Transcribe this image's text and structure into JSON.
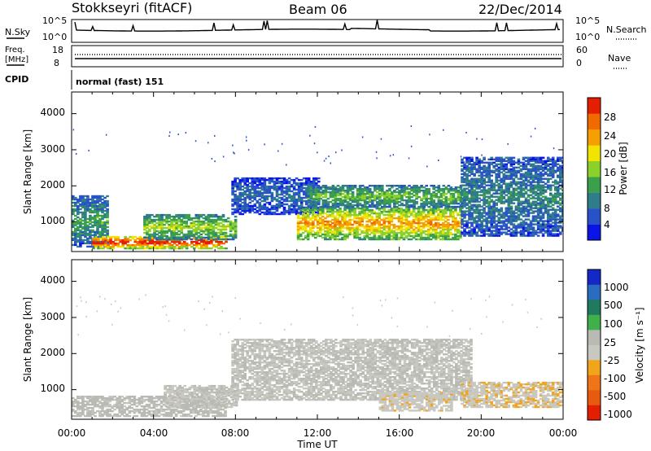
{
  "header": {
    "station": "Stokkseyri (fitACF)",
    "beam": "Beam 06",
    "date": "22/Dec/2014"
  },
  "noise_panel": {
    "left_label": "N.Sky",
    "right_label": "N.Search",
    "left_ticks": [
      "10^5",
      "10^0"
    ],
    "right_ticks": [
      "10^5",
      "10^0"
    ]
  },
  "freq_panel": {
    "left_label_line1": "Freq.",
    "left_label_line2": "[MHz]",
    "left_ticks": [
      "18",
      "8"
    ],
    "right_label": "Nave",
    "right_ticks": [
      "60",
      "0"
    ]
  },
  "cpid": {
    "label": "CPID",
    "mode": "normal (fast) 151"
  },
  "colors": {
    "power_scale": [
      "#0a14e6",
      "#2a52c8",
      "#2f7d8a",
      "#3aa04b",
      "#8cd02a",
      "#f0e400",
      "#f5a000",
      "#f06a00",
      "#e41e00"
    ],
    "velocity_scale": [
      "#1428c8",
      "#2a6cc0",
      "#1f7a5e",
      "#3fb04a",
      "#b9bab3",
      "#c8c8c0",
      "#f2a41a",
      "#f07418",
      "#e85a10",
      "#e41e00"
    ]
  },
  "chart_data": [
    {
      "type": "heatmap",
      "name": "power",
      "xlabel": "",
      "ylabel": "Slant Range [km]",
      "x_ticks": [
        "00:00",
        "04:00",
        "08:00",
        "12:00",
        "16:00",
        "20:00",
        "00:00"
      ],
      "x_range_hours": [
        0,
        24
      ],
      "y_ticks": [
        "1000",
        "2000",
        "3000",
        "4000"
      ],
      "ylim": [
        180,
        4600
      ],
      "colorbar": {
        "label": "Power [dB]",
        "ticks": [
          "4",
          "8",
          "12",
          "16",
          "20",
          "24",
          "28"
        ],
        "range": [
          0,
          30
        ]
      },
      "regions": [
        {
          "t_start": 0.0,
          "t_end": 1.8,
          "r_low": 300,
          "r_high": 1700,
          "mean": 10
        },
        {
          "t_start": 1.0,
          "t_end": 7.5,
          "r_low": 250,
          "r_high": 600,
          "mean": 26
        },
        {
          "t_start": 3.5,
          "t_end": 8.0,
          "r_low": 500,
          "r_high": 1200,
          "mean": 14
        },
        {
          "t_start": 7.8,
          "t_end": 12.0,
          "r_low": 1200,
          "r_high": 2200,
          "mean": 6
        },
        {
          "t_start": 11.0,
          "t_end": 19.0,
          "r_low": 500,
          "r_high": 1400,
          "mean": 20
        },
        {
          "t_start": 11.5,
          "t_end": 19.0,
          "r_low": 1400,
          "r_high": 2000,
          "mean": 12
        },
        {
          "t_start": 19.0,
          "t_end": 24.0,
          "r_low": 600,
          "r_high": 2800,
          "mean": 8
        }
      ]
    },
    {
      "type": "heatmap",
      "name": "velocity",
      "xlabel": "Time UT",
      "ylabel": "Slant Range [km]",
      "x_ticks": [
        "00:00",
        "04:00",
        "08:00",
        "12:00",
        "16:00",
        "20:00",
        "00:00"
      ],
      "x_range_hours": [
        0,
        24
      ],
      "y_ticks": [
        "1000",
        "2000",
        "3000",
        "4000"
      ],
      "ylim": [
        180,
        4600
      ],
      "colorbar": {
        "label": "Velocity [m s⁻¹]",
        "ticks": [
          "1000",
          "500",
          "100",
          "25",
          "-25",
          "-100",
          "-500",
          "-1000"
        ],
        "range": [
          -1500,
          1500
        ]
      },
      "regions": [
        {
          "t_start": 0.0,
          "t_end": 7.5,
          "r_low": 250,
          "r_high": 800,
          "mean": 80
        },
        {
          "t_start": 4.5,
          "t_end": 8.0,
          "r_low": 500,
          "r_high": 1100,
          "mean": 0
        },
        {
          "t_start": 7.8,
          "t_end": 19.5,
          "r_low": 700,
          "r_high": 2400,
          "mean": 0
        },
        {
          "t_start": 15.0,
          "t_end": 18.5,
          "r_low": 400,
          "r_high": 900,
          "mean": -200
        },
        {
          "t_start": 19.0,
          "t_end": 24.0,
          "r_low": 500,
          "r_high": 1200,
          "mean": -250
        }
      ]
    }
  ]
}
